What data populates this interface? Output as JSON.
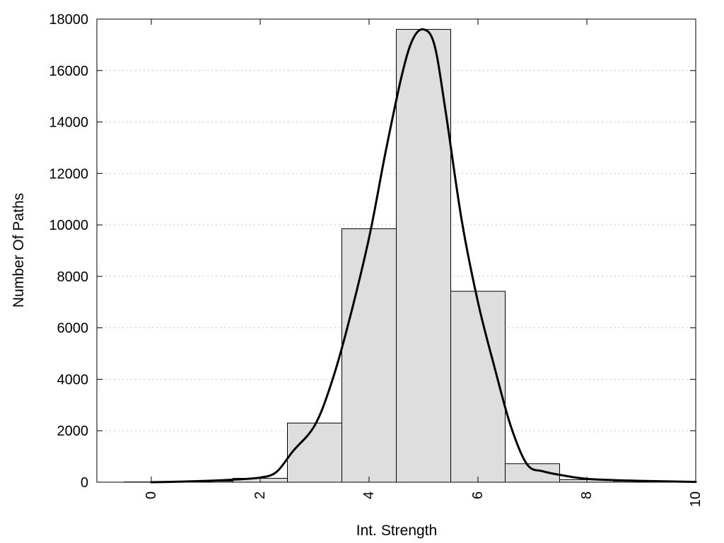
{
  "chart_data": {
    "type": "bar",
    "title": "",
    "xlabel": "Int. Strength",
    "ylabel": "Number Of Paths",
    "xlim": [
      -1,
      10
    ],
    "ylim": [
      0,
      18000
    ],
    "x_ticks": [
      0,
      2,
      4,
      6,
      8,
      10
    ],
    "y_ticks": [
      0,
      2000,
      4000,
      6000,
      8000,
      10000,
      12000,
      14000,
      16000,
      18000
    ],
    "grid": "horizontal dotted",
    "bars": {
      "bin_width": 1,
      "centers": [
        0,
        1,
        2,
        3,
        4,
        5,
        6,
        7,
        8,
        9
      ],
      "values": [
        10,
        40,
        150,
        2300,
        9850,
        17600,
        7420,
        720,
        100,
        40
      ]
    },
    "curve": {
      "x": [
        0,
        0.5,
        1,
        1.5,
        2,
        2.3,
        2.6,
        3,
        3.3,
        3.6,
        4,
        4.3,
        4.6,
        4.8,
        5,
        5.2,
        5.4,
        5.7,
        6,
        6.3,
        6.6,
        6.9,
        7.2,
        7.6,
        8,
        8.5,
        9,
        9.5,
        10
      ],
      "y": [
        0,
        20,
        50,
        100,
        180,
        400,
        1200,
        2200,
        3800,
        6000,
        9500,
        12800,
        15800,
        17200,
        17600,
        17000,
        14500,
        10200,
        7000,
        4500,
        2200,
        700,
        420,
        250,
        130,
        80,
        50,
        30,
        10
      ]
    },
    "colors": {
      "bar_fill": "#dedede",
      "bar_stroke": "#000000",
      "curve": "#000000",
      "grid": "#c8c8c8"
    }
  }
}
